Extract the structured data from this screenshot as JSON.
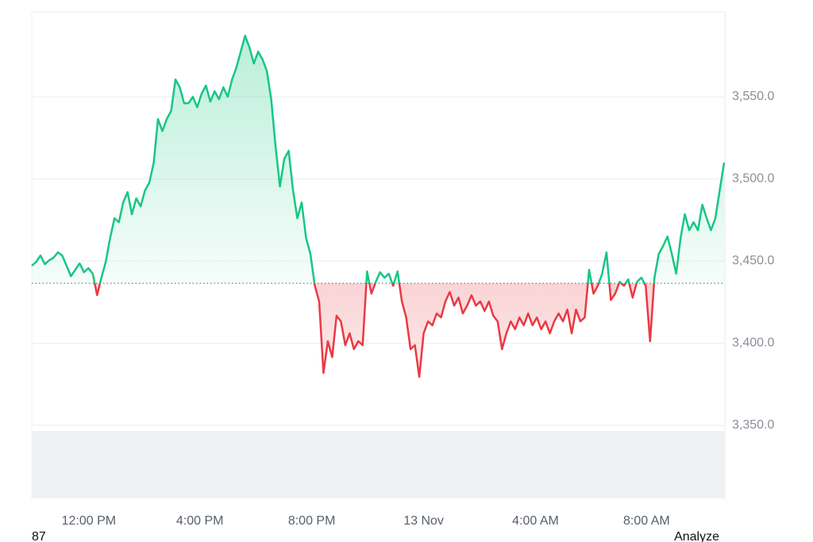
{
  "chart_data": {
    "type": "line",
    "values": [
      3447.1,
      3449.5,
      3453.4,
      3448.1,
      3450.5,
      3452.0,
      3455.3,
      3453.4,
      3447.1,
      3440.8,
      3444.7,
      3448.6,
      3443.2,
      3445.7,
      3442.3,
      3429.3,
      3439.9,
      3449.5,
      3464.0,
      3476.1,
      3473.7,
      3485.8,
      3492.0,
      3478.5,
      3488.2,
      3483.3,
      3493.0,
      3497.8,
      3509.9,
      3536.5,
      3529.2,
      3536.5,
      3541.3,
      3560.6,
      3555.8,
      3546.1,
      3546.1,
      3550.0,
      3543.7,
      3551.9,
      3556.8,
      3547.1,
      3553.4,
      3548.6,
      3555.8,
      3550.0,
      3560.6,
      3567.9,
      3577.5,
      3587.2,
      3580.0,
      3570.3,
      3577.5,
      3572.7,
      3565.5,
      3548.6,
      3519.6,
      3495.4,
      3512.3,
      3517.1,
      3493.0,
      3476.1,
      3485.7,
      3464.0,
      3454.3,
      3435.0,
      3425.4,
      3381.9,
      3401.2,
      3391.5,
      3416.7,
      3413.3,
      3398.8,
      3406.0,
      3396.4,
      3401.2,
      3398.8,
      3443.7,
      3430.2,
      3437.4,
      3443.2,
      3439.9,
      3442.3,
      3435.0,
      3443.7,
      3425.4,
      3415.7,
      3396.4,
      3398.8,
      3379.5,
      3406.0,
      3413.3,
      3410.9,
      3418.1,
      3415.7,
      3425.4,
      3431.2,
      3422.9,
      3427.8,
      3418.1,
      3422.9,
      3429.2,
      3422.9,
      3425.4,
      3419.6,
      3425.4,
      3416.7,
      3413.3,
      3396.4,
      3406.0,
      3413.3,
      3408.5,
      3415.7,
      3410.9,
      3418.1,
      3410.9,
      3415.7,
      3408.5,
      3413.3,
      3406.0,
      3413.3,
      3418.1,
      3413.3,
      3420.5,
      3406.0,
      3420.5,
      3413.3,
      3415.7,
      3444.7,
      3430.2,
      3435.0,
      3442.3,
      3455.3,
      3426.3,
      3430.2,
      3437.4,
      3435.0,
      3438.9,
      3427.8,
      3437.4,
      3439.9,
      3435.0,
      3401.2,
      3439.9,
      3454.3,
      3459.2,
      3465.0,
      3454.3,
      3442.3,
      3464.0,
      3478.5,
      3468.8,
      3473.7,
      3468.8,
      3484.3,
      3476.1,
      3468.8,
      3476.1,
      3493.0,
      3509.9
    ],
    "baseline": 3436.5,
    "up_color": "#16c784",
    "down_color": "#ea3943",
    "xlim": [
      0,
      159
    ],
    "xticks": [
      {
        "value": 13.1,
        "label": "12:00 PM"
      },
      {
        "value": 38.6,
        "label": "4:00 PM"
      },
      {
        "value": 64.3,
        "label": "8:00 PM"
      },
      {
        "value": 90.0,
        "label": "13 Nov"
      },
      {
        "value": 115.7,
        "label": "4:00 AM"
      },
      {
        "value": 141.2,
        "label": "8:00 AM"
      }
    ],
    "ylim": [
      3350,
      3601.7
    ],
    "yticks": [
      {
        "value": 3350,
        "label": "3,350.0"
      },
      {
        "value": 3400,
        "label": "3,400.0"
      },
      {
        "value": 3450,
        "label": "3,450.0"
      },
      {
        "value": 3500,
        "label": "3,500.0"
      },
      {
        "value": 3550,
        "label": "3,550.0"
      }
    ],
    "grid": true
  },
  "footer": {
    "left": "87",
    "right": "Analyze"
  }
}
